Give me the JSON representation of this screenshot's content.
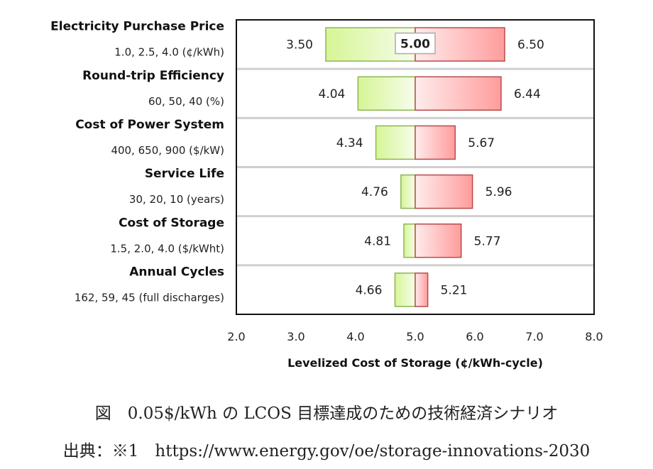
{
  "chart_data": {
    "type": "bar",
    "orientation": "horizontal-tornado",
    "baseline": 5.0,
    "baseline_label": "5.00",
    "categories": [
      {
        "name": "Electricity Purchase Price",
        "sub": "1.0, 2.5, 4.0 (¢/kWh)",
        "low": 3.5,
        "high": 6.5,
        "low_label": "3.50",
        "high_label": "6.50"
      },
      {
        "name": "Round-trip Efficiency",
        "sub": "60, 50, 40 (%)",
        "low": 4.04,
        "high": 6.44,
        "low_label": "4.04",
        "high_label": "6.44"
      },
      {
        "name": "Cost of Power System",
        "sub": "400, 650, 900 ($/kW)",
        "low": 4.34,
        "high": 5.67,
        "low_label": "4.34",
        "high_label": "5.67"
      },
      {
        "name": "Service Life",
        "sub": "30, 20, 10 (years)",
        "low": 4.76,
        "high": 5.96,
        "low_label": "4.76",
        "high_label": "5.96"
      },
      {
        "name": "Cost of Storage",
        "sub": "1.5, 2.0, 4.0 ($/kWht)",
        "low": 4.81,
        "high": 5.77,
        "low_label": "4.81",
        "high_label": "5.77"
      },
      {
        "name": "Annual Cycles",
        "sub": "162, 59, 45 (full discharges)",
        "low": 4.66,
        "high": 5.21,
        "low_label": "4.66",
        "high_label": "5.21"
      }
    ],
    "xlabel": "Levelized Cost of Storage (¢/kWh-cycle)",
    "xlim": [
      2.0,
      8.0
    ],
    "xticks": [
      "2.0",
      "3.0",
      "4.0",
      "5.0",
      "6.0",
      "7.0",
      "8.0"
    ],
    "colors": {
      "low": "#d9f59a",
      "low_border": "#8db555",
      "high": "#ff9e9e",
      "high_border": "#b84a4a"
    }
  },
  "caption": {
    "title": "図　0.05$/kWh の LCOS 目標達成のための技術経済シナリオ",
    "source": "出典：※1　https://www.energy.gov/oe/storage-innovations-2030"
  }
}
